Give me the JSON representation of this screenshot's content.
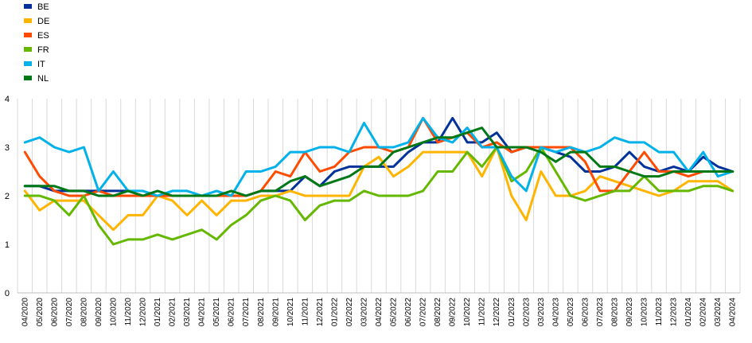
{
  "chart_data": {
    "type": "line",
    "title": "",
    "xlabel": "",
    "ylabel": "",
    "ylim": [
      0,
      4
    ],
    "yticks": [
      0,
      1,
      2,
      3,
      4
    ],
    "grid": "vertical",
    "legend_position": "top-left",
    "x": [
      "04/2020",
      "05/2020",
      "06/2020",
      "07/2020",
      "08/2020",
      "09/2020",
      "10/2020",
      "11/2020",
      "12/2020",
      "01/2021",
      "02/2021",
      "03/2021",
      "04/2021",
      "05/2021",
      "06/2021",
      "07/2021",
      "08/2021",
      "09/2021",
      "10/2021",
      "11/2021",
      "12/2021",
      "01/2022",
      "02/2022",
      "03/2022",
      "04/2022",
      "05/2022",
      "06/2022",
      "07/2022",
      "08/2022",
      "09/2022",
      "10/2022",
      "11/2022",
      "12/2022",
      "01/2023",
      "02/2023",
      "03/2023",
      "04/2023",
      "05/2023",
      "06/2023",
      "07/2023",
      "08/2023",
      "09/2023",
      "10/2023",
      "11/2023",
      "12/2023",
      "01/2024",
      "02/2024",
      "03/2024",
      "04/2024"
    ],
    "x_tick_labels": [
      "04/2020",
      "05/2020",
      "06/2020",
      "07/2020",
      "08/2020",
      "09/2020",
      "10/2020",
      "11/2020",
      "12/2020",
      "01/2021",
      "02/2021",
      "03/2021",
      "04/2021",
      "05/2021",
      "06/2021",
      "07/2021",
      "08/2021",
      "09/2021",
      "10/2021",
      "11/2021",
      "12/2021",
      "01/2022",
      "02/2022",
      "03/2022",
      "04/2022",
      "05/2022",
      "06/2022",
      "07/2022",
      "08/2022",
      "09/2022",
      "10/2022",
      "11/2022",
      "12/2022",
      "01/2023",
      "02/2023",
      "03/2023",
      "04/2023",
      "05/2023",
      "06/2023",
      "07/2023",
      "08/2023",
      "09/2023",
      "10/2023",
      "11/2023",
      "12/2023",
      "01/2024",
      "02/2024",
      "03/2024",
      "04/2024"
    ],
    "series": [
      {
        "name": "BE",
        "color": "#003299",
        "values": [
          2.2,
          2.2,
          2.1,
          2.1,
          2.1,
          2.1,
          2.1,
          2.1,
          2.0,
          2.0,
          2.0,
          2.0,
          2.0,
          2.0,
          2.0,
          2.0,
          2.1,
          2.1,
          2.1,
          2.4,
          2.2,
          2.5,
          2.6,
          2.6,
          2.6,
          2.6,
          2.9,
          3.1,
          3.1,
          3.6,
          3.1,
          3.1,
          3.3,
          2.9,
          3.0,
          3.0,
          2.9,
          2.8,
          2.5,
          2.5,
          2.6,
          2.9,
          2.6,
          2.5,
          2.6,
          2.5,
          2.8,
          2.6,
          2.5
        ]
      },
      {
        "name": "DE",
        "color": "#FFB400",
        "values": [
          2.1,
          1.7,
          1.9,
          1.9,
          1.9,
          1.6,
          1.3,
          1.6,
          1.6,
          2.0,
          1.9,
          1.6,
          1.9,
          1.6,
          1.9,
          1.9,
          2.0,
          2.0,
          2.1,
          2.0,
          2.0,
          2.0,
          2.0,
          2.6,
          2.8,
          2.4,
          2.6,
          2.9,
          2.9,
          2.9,
          2.9,
          2.4,
          3.0,
          2.0,
          1.5,
          2.5,
          2.0,
          2.0,
          2.1,
          2.4,
          2.3,
          2.2,
          2.1,
          2.0,
          2.1,
          2.3,
          2.3,
          2.3,
          2.1
        ]
      },
      {
        "name": "ES",
        "color": "#FF4B00",
        "values": [
          2.9,
          2.4,
          2.1,
          2.0,
          2.0,
          2.1,
          2.0,
          2.0,
          2.0,
          2.0,
          2.0,
          2.0,
          2.0,
          2.0,
          2.0,
          2.0,
          2.1,
          2.5,
          2.4,
          2.9,
          2.5,
          2.6,
          2.9,
          3.0,
          3.0,
          2.9,
          3.0,
          3.6,
          3.1,
          3.2,
          3.3,
          3.0,
          3.1,
          2.9,
          3.0,
          3.0,
          3.0,
          3.0,
          2.7,
          2.1,
          2.1,
          2.5,
          2.9,
          2.5,
          2.5,
          2.4,
          2.5,
          2.5,
          2.5
        ]
      },
      {
        "name": "FR",
        "color": "#65B800",
        "values": [
          2.0,
          2.0,
          1.9,
          1.6,
          2.0,
          1.4,
          1.0,
          1.1,
          1.1,
          1.2,
          1.1,
          1.2,
          1.3,
          1.1,
          1.4,
          1.6,
          1.9,
          2.0,
          1.9,
          1.5,
          1.8,
          1.9,
          1.9,
          2.1,
          2.0,
          2.0,
          2.0,
          2.1,
          2.5,
          2.5,
          2.9,
          2.6,
          3.0,
          2.3,
          2.5,
          3.0,
          2.5,
          2.0,
          1.9,
          2.0,
          2.1,
          2.1,
          2.4,
          2.1,
          2.1,
          2.1,
          2.2,
          2.2,
          2.1
        ]
      },
      {
        "name": "IT",
        "color": "#00B1EA",
        "values": [
          3.1,
          3.2,
          3.0,
          2.9,
          3.0,
          2.1,
          2.5,
          2.1,
          2.1,
          2.0,
          2.1,
          2.1,
          2.0,
          2.1,
          2.0,
          2.5,
          2.5,
          2.6,
          2.9,
          2.9,
          3.0,
          3.0,
          2.9,
          3.5,
          3.0,
          3.0,
          3.1,
          3.6,
          3.2,
          3.1,
          3.4,
          3.0,
          3.0,
          2.4,
          2.1,
          3.0,
          2.9,
          3.0,
          2.9,
          3.0,
          3.2,
          3.1,
          3.1,
          2.9,
          2.9,
          2.5,
          2.9,
          2.4,
          2.5
        ]
      },
      {
        "name": "NL",
        "color": "#007816",
        "values": [
          2.2,
          2.2,
          2.2,
          2.1,
          2.1,
          2.0,
          2.0,
          2.1,
          2.0,
          2.1,
          2.0,
          2.0,
          2.0,
          2.0,
          2.1,
          2.0,
          2.1,
          2.1,
          2.3,
          2.4,
          2.2,
          2.3,
          2.4,
          2.6,
          2.6,
          2.9,
          3.0,
          3.1,
          3.2,
          3.2,
          3.3,
          3.4,
          3.0,
          3.0,
          3.0,
          2.9,
          2.7,
          2.9,
          2.9,
          2.6,
          2.6,
          2.5,
          2.4,
          2.4,
          2.5,
          2.5,
          2.5,
          2.5,
          2.5
        ]
      }
    ]
  }
}
